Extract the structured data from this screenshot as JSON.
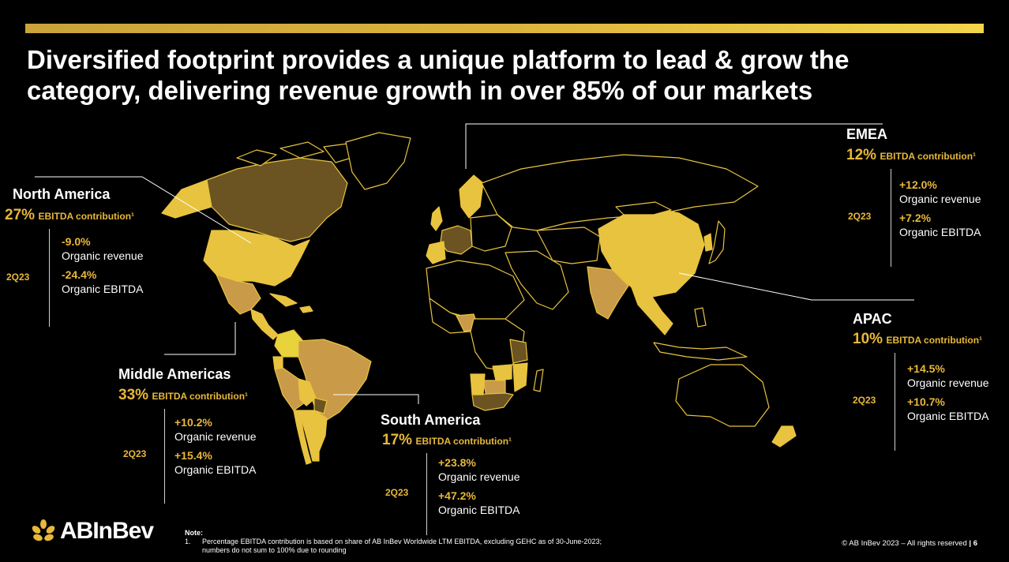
{
  "slide": {
    "title": "Diversified footprint provides a unique platform to lead & grow the\ncategory, delivering revenue growth in over 85% of our markets",
    "colors": {
      "accent": "#e8b83a",
      "country_light": "#e8c33f",
      "country_mid": "#c99a48",
      "country_dark": "#6b5422",
      "background": "#000000"
    }
  },
  "regions": {
    "north_america": {
      "name": "North America",
      "contribution_pct": "27%",
      "contribution_label": "EBITDA contribution¹",
      "period": "2Q23",
      "revenue_value": "-9.0%",
      "revenue_label": "Organic revenue",
      "ebitda_value": "-24.4%",
      "ebitda_label": "Organic EBITDA"
    },
    "middle_americas": {
      "name": "Middle Americas",
      "contribution_pct": "33%",
      "contribution_label": "EBITDA contribution¹",
      "period": "2Q23",
      "revenue_value": "+10.2%",
      "revenue_label": "Organic revenue",
      "ebitda_value": "+15.4%",
      "ebitda_label": "Organic EBITDA"
    },
    "south_america": {
      "name": "South America",
      "contribution_pct": "17%",
      "contribution_label": "EBITDA contribution¹",
      "period": "2Q23",
      "revenue_value": "+23.8%",
      "revenue_label": "Organic revenue",
      "ebitda_value": "+47.2%",
      "ebitda_label": "Organic EBITDA"
    },
    "emea": {
      "name": "EMEA",
      "contribution_pct": "12%",
      "contribution_label": "EBITDA contribution¹",
      "period": "2Q23",
      "revenue_value": "+12.0%",
      "revenue_label": "Organic revenue",
      "ebitda_value": "+7.2%",
      "ebitda_label": "Organic EBITDA"
    },
    "apac": {
      "name": "APAC",
      "contribution_pct": "10%",
      "contribution_label": "EBITDA contribution¹",
      "period": "2Q23",
      "revenue_value": "+14.5%",
      "revenue_label": "Organic revenue",
      "ebitda_value": "+10.7%",
      "ebitda_label": "Organic EBITDA"
    }
  },
  "footer": {
    "logo_text": "ABInBev",
    "logo_icon": "wheat-icon",
    "note_heading": "Note:",
    "note_number": "1.",
    "note_text": "Percentage EBITDA contribution is based on share of AB InBev Worldwide LTM EBITDA, excluding GEHC as of 30-June-2023;",
    "note_text_2": "numbers do not sum to 100% due to rounding",
    "copyright": "© AB InBev 2023 – All rights reserved",
    "page_number": "6"
  }
}
